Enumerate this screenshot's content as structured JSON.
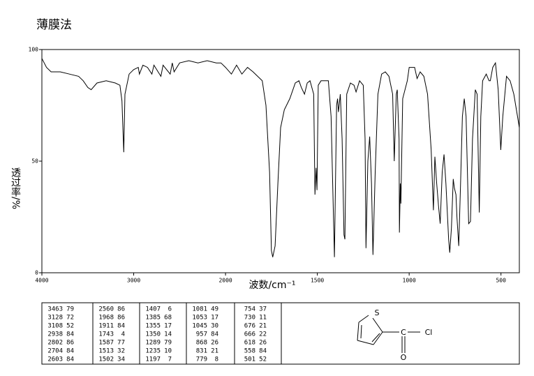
{
  "chart_data": {
    "type": "line",
    "title": "薄膜法",
    "x_label": "波数/cm⁻¹",
    "y_label": "透过率/%",
    "xlim": [
      4000,
      400
    ],
    "ylim": [
      0,
      100
    ],
    "xscale_break": 2000,
    "xscale_factor": 2,
    "xticks": [
      4000,
      3000,
      2000,
      1500,
      1000,
      500
    ],
    "yticks": [
      0,
      50,
      100
    ],
    "color": "#000000",
    "x": [
      4000,
      3950,
      3900,
      3800,
      3700,
      3600,
      3550,
      3500,
      3463,
      3400,
      3300,
      3200,
      3150,
      3128,
      3108,
      3095,
      3050,
      3000,
      2950,
      2938,
      2900,
      2850,
      2802,
      2780,
      2704,
      2680,
      2603,
      2580,
      2560,
      2500,
      2400,
      2300,
      2200,
      2100,
      2050,
      2000,
      1968,
      1940,
      1911,
      1880,
      1850,
      1800,
      1780,
      1760,
      1750,
      1743,
      1730,
      1715,
      1700,
      1680,
      1650,
      1620,
      1600,
      1587,
      1570,
      1555,
      1540,
      1520,
      1513,
      1507,
      1502,
      1495,
      1480,
      1440,
      1425,
      1407,
      1395,
      1390,
      1385,
      1375,
      1365,
      1355,
      1350,
      1340,
      1320,
      1300,
      1289,
      1270,
      1250,
      1240,
      1235,
      1225,
      1215,
      1205,
      1197,
      1185,
      1170,
      1150,
      1130,
      1110,
      1090,
      1081,
      1070,
      1065,
      1055,
      1053,
      1048,
      1045,
      1035,
      1010,
      1000,
      970,
      957,
      940,
      920,
      900,
      880,
      868,
      860,
      850,
      840,
      831,
      820,
      810,
      800,
      785,
      779,
      770,
      760,
      754,
      745,
      740,
      730,
      720,
      710,
      700,
      690,
      676,
      666,
      655,
      640,
      630,
      618,
      610,
      600,
      580,
      565,
      558,
      545,
      530,
      515,
      501,
      490,
      470,
      450,
      430,
      410,
      400
    ],
    "values": [
      96,
      92,
      90,
      90,
      89,
      88,
      86,
      83,
      82,
      85,
      86,
      85,
      84,
      77,
      54,
      80,
      89,
      91,
      92,
      89,
      93,
      92,
      89,
      93,
      88,
      93,
      89,
      94,
      90,
      94,
      95,
      94,
      95,
      94,
      94,
      92,
      89,
      93,
      89,
      92,
      90,
      86,
      75,
      45,
      10,
      7,
      12,
      40,
      65,
      73,
      78,
      85,
      86,
      83,
      80,
      85,
      86,
      80,
      35,
      47,
      37,
      84,
      86,
      86,
      70,
      7,
      75,
      78,
      72,
      80,
      60,
      17,
      15,
      80,
      85,
      84,
      81,
      86,
      84,
      60,
      11,
      50,
      61,
      40,
      8,
      45,
      80,
      89,
      90,
      88,
      80,
      50,
      80,
      82,
      60,
      18,
      40,
      31,
      78,
      86,
      92,
      92,
      87,
      90,
      88,
      80,
      55,
      28,
      52,
      40,
      30,
      22,
      45,
      53,
      40,
      15,
      9,
      20,
      42,
      38,
      35,
      25,
      12,
      40,
      70,
      78,
      70,
      22,
      23,
      60,
      82,
      80,
      27,
      70,
      86,
      89,
      86,
      86,
      92,
      94,
      82,
      55,
      70,
      88,
      86,
      80,
      70,
      65
    ]
  },
  "peak_table": {
    "rows": [
      [
        "3463",
        "79",
        "2560",
        "86",
        "1407",
        "6",
        "1081",
        "49",
        "754",
        "37"
      ],
      [
        "3128",
        "72",
        "1968",
        "86",
        "1385",
        "68",
        "1053",
        "17",
        "730",
        "11"
      ],
      [
        "3108",
        "52",
        "1911",
        "84",
        "1355",
        "17",
        "1045",
        "30",
        "676",
        "21"
      ],
      [
        "2938",
        "84",
        "1743",
        "4",
        "1350",
        "14",
        "957",
        "84",
        "666",
        "22"
      ],
      [
        "2802",
        "86",
        "1587",
        "77",
        "1289",
        "79",
        "868",
        "26",
        "618",
        "26"
      ],
      [
        "2704",
        "84",
        "1513",
        "32",
        "1235",
        "10",
        "831",
        "21",
        "558",
        "84"
      ],
      [
        "2603",
        "84",
        "1502",
        "34",
        "1197",
        "7",
        "779",
        "8",
        "501",
        "52"
      ]
    ]
  },
  "structure": {
    "atoms": [
      "S",
      "C",
      "Cl",
      "O"
    ]
  }
}
